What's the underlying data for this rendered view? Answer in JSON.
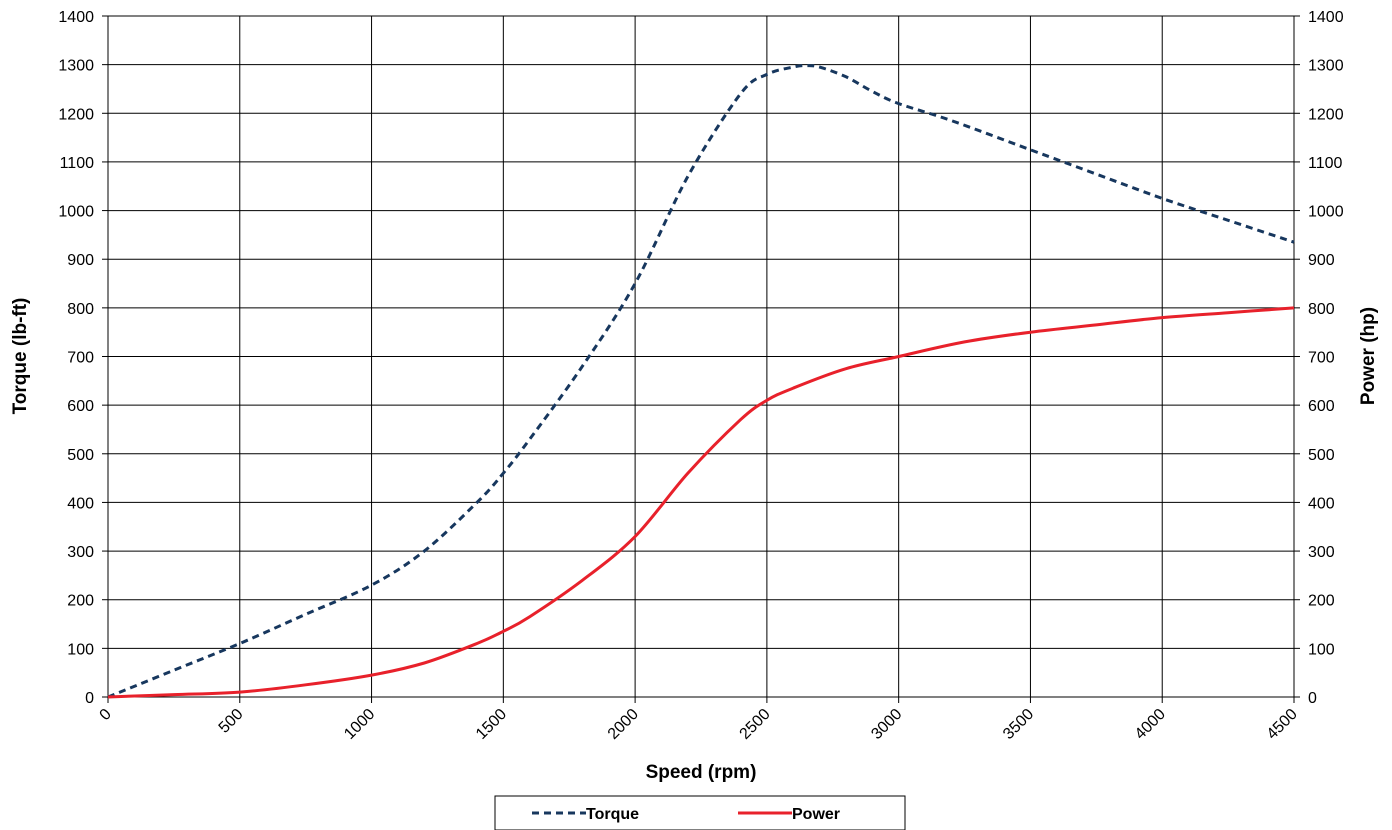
{
  "chart_data": {
    "type": "line",
    "xlabel": "Speed (rpm)",
    "ylabel_left": "Torque (lb-ft)",
    "ylabel_right": "Power (hp)",
    "xlim": [
      0,
      4500
    ],
    "ylim_left": [
      0,
      1400
    ],
    "ylim_right": [
      0,
      1400
    ],
    "x_ticks": [
      "0",
      "500",
      "1000",
      "1500",
      "2000",
      "2500",
      "3000",
      "3500",
      "4000",
      "4500"
    ],
    "y_ticks": [
      "0",
      "100",
      "200",
      "300",
      "400",
      "500",
      "600",
      "700",
      "800",
      "900",
      "1000",
      "1100",
      "1200",
      "1300",
      "1400"
    ],
    "grid": true,
    "legend_position": "bottom-center",
    "series": [
      {
        "name": "Torque",
        "axis": "left",
        "color": "#17375e",
        "style": "dashed",
        "x": [
          0,
          250,
          500,
          750,
          1000,
          1200,
          1400,
          1500,
          1600,
          1800,
          2000,
          2200,
          2400,
          2500,
          2600,
          2650,
          2700,
          2800,
          2900,
          3000,
          3200,
          3500,
          3750,
          4000,
          4250,
          4500
        ],
        "y": [
          0,
          55,
          110,
          170,
          230,
          300,
          400,
          460,
          530,
          680,
          850,
          1070,
          1240,
          1280,
          1295,
          1298,
          1295,
          1275,
          1245,
          1220,
          1185,
          1125,
          1075,
          1025,
          980,
          935
        ]
      },
      {
        "name": "Power",
        "axis": "right",
        "color": "#e8212b",
        "style": "solid",
        "x": [
          0,
          250,
          500,
          750,
          1000,
          1200,
          1400,
          1500,
          1600,
          1800,
          2000,
          2200,
          2400,
          2500,
          2600,
          2800,
          3000,
          3250,
          3500,
          3750,
          4000,
          4250,
          4500
        ],
        "y": [
          0,
          5,
          10,
          25,
          45,
          70,
          110,
          135,
          165,
          240,
          330,
          460,
          570,
          610,
          635,
          675,
          700,
          730,
          750,
          765,
          780,
          790,
          800
        ]
      }
    ]
  }
}
